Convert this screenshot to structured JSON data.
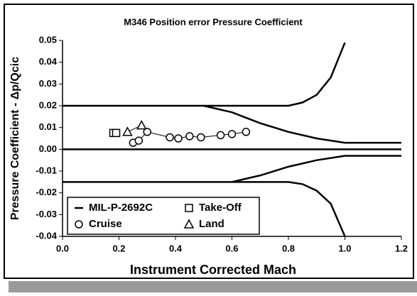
{
  "chart_data": {
    "type": "line",
    "title": "M346 Position error Pressure Coefficient",
    "x_label": "Instrument Corrected Mach",
    "y_label": "Pressure Coefficient - Δp/Qcic",
    "xlim": [
      0,
      1.2
    ],
    "xticks": [
      {
        "value": 0,
        "label": "0.0"
      },
      0.2,
      0.4,
      0.6,
      0.8,
      {
        "value": 1,
        "label": "1.0"
      },
      1.2
    ],
    "ylim": [
      -0.04,
      0.05
    ],
    "yticks": [
      -0.04,
      -0.03,
      -0.02,
      -0.01,
      {
        "value": 0,
        "label": "0.00"
      },
      0.01,
      0.02,
      0.03,
      0.04,
      0.05
    ],
    "legend": "lower left",
    "series": [
      {
        "name": "MIL-P-2692C",
        "color": "#000000",
        "line_width": 2.5,
        "x": [
          0,
          0.8,
          0.85,
          0.9,
          0.95,
          1.0,
          null,
          0.5,
          0.6,
          0.7,
          0.8,
          0.9,
          1.0,
          1.2,
          null,
          0,
          1.2,
          null,
          0,
          0.8,
          0.85,
          0.9,
          0.95,
          1.0,
          null,
          0.6,
          0.7,
          0.8,
          0.9,
          1.0,
          1.2
        ],
        "values": [
          0.02,
          0.02,
          0.0215,
          0.025,
          0.033,
          0.049,
          null,
          0.02,
          0.017,
          0.012,
          0.008,
          0.005,
          0.003,
          0.003,
          null,
          0,
          0,
          null,
          -0.015,
          -0.015,
          -0.016,
          -0.019,
          -0.025,
          -0.04,
          null,
          -0.015,
          -0.012,
          -0.008,
          -0.005,
          -0.003,
          -0.003
        ]
      },
      {
        "name": "Take-Off",
        "color": "#000000",
        "marker": "square",
        "line_width": 1,
        "x": [
          0.18,
          0.19
        ],
        "values": [
          0.0075,
          0.0075
        ]
      },
      {
        "name": "Cruise",
        "color": "#000000",
        "marker": "circle",
        "line_width": 1,
        "x": [
          0.25,
          0.27,
          0.3,
          0.38,
          0.41,
          0.45,
          0.49,
          0.56,
          0.6,
          0.65
        ],
        "values": [
          0.003,
          0.004,
          0.008,
          0.0055,
          0.005,
          0.006,
          0.0055,
          0.0065,
          0.007,
          0.008
        ]
      },
      {
        "name": "Land",
        "color": "#000000",
        "marker": "triangle",
        "line_width": 1,
        "x": [
          0.23,
          0.28
        ],
        "values": [
          0.008,
          0.011
        ]
      }
    ]
  }
}
